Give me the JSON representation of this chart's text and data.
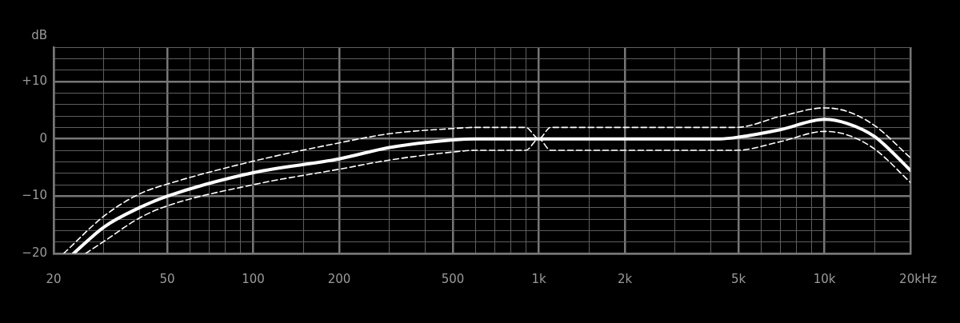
{
  "chart_data": {
    "type": "line",
    "ylabel": "dB",
    "xlabel": "Hz",
    "log": "x",
    "grid": true,
    "xlim": [
      20,
      20000
    ],
    "ylim": [
      -20,
      16
    ],
    "xticks": [
      20,
      {
        "value": 30,
        "label": null
      },
      {
        "value": 40,
        "label": null
      },
      50,
      {
        "value": 60,
        "label": null
      },
      {
        "value": 70,
        "label": null
      },
      {
        "value": 80,
        "label": null
      },
      {
        "value": 90,
        "label": null
      },
      100,
      {
        "value": 150,
        "label": null
      },
      200,
      {
        "value": 300,
        "label": null
      },
      {
        "value": 400,
        "label": null
      },
      500,
      {
        "value": 600,
        "label": null
      },
      {
        "value": 700,
        "label": null
      },
      {
        "value": 800,
        "label": null
      },
      {
        "value": 900,
        "label": null
      },
      {
        "value": 1000,
        "label": "1k"
      },
      {
        "value": 1500,
        "label": null
      },
      {
        "value": 2000,
        "label": "2k"
      },
      {
        "value": 3000,
        "label": null
      },
      {
        "value": 4000,
        "label": null
      },
      {
        "value": 5000,
        "label": "5k"
      },
      {
        "value": 6000,
        "label": null
      },
      {
        "value": 7000,
        "label": null
      },
      {
        "value": 8000,
        "label": null
      },
      {
        "value": 9000,
        "label": null
      },
      {
        "value": 10000,
        "label": "10k"
      },
      {
        "value": 15000,
        "label": null
      },
      {
        "value": 20000,
        "label": "20k"
      }
    ],
    "yticks": [
      {
        "value": -20,
        "label": "−20"
      },
      {
        "value": -18,
        "label": null
      },
      {
        "value": -16,
        "label": null
      },
      {
        "value": -14,
        "label": null
      },
      {
        "value": -12,
        "label": null
      },
      {
        "value": -10,
        "label": "−10"
      },
      {
        "value": -8,
        "label": null
      },
      {
        "value": -6,
        "label": null
      },
      {
        "value": -4,
        "label": null
      },
      {
        "value": -2,
        "label": null
      },
      0,
      {
        "value": 2,
        "label": null
      },
      {
        "value": 4,
        "label": null
      },
      {
        "value": 6,
        "label": null
      },
      {
        "value": 8,
        "label": null
      },
      {
        "value": 10,
        "label": "+10"
      },
      {
        "value": 12,
        "label": null
      },
      {
        "value": 14,
        "label": null
      },
      {
        "value": 16,
        "label": null
      }
    ],
    "series": [
      {
        "color": "#ffffff",
        "line_style": "dashed",
        "x": [
          21.7,
          30,
          40,
          50,
          100,
          200,
          300,
          500,
          600,
          900,
          1000,
          1100,
          4900,
          7000,
          10000,
          12000,
          15000,
          20000
        ],
        "values": [
          -20,
          -13.5,
          -9.6,
          -7.9,
          -3.9,
          -0.7,
          0.9,
          1.8,
          2,
          2,
          0,
          2,
          2,
          3.9,
          5.4,
          4.8,
          2.3,
          -3.3
        ]
      },
      {
        "color": "#ffffff",
        "line_style": "dashed",
        "x": [
          25.9,
          30,
          40,
          50,
          100,
          200,
          300,
          500,
          600,
          900,
          1000,
          1100,
          4900,
          7000,
          10000,
          12000,
          15000,
          20000
        ],
        "values": [
          -20,
          -17.9,
          -13.8,
          -11.7,
          -8,
          -5.3,
          -3.7,
          -2.3,
          -2,
          -2,
          0,
          -2,
          -2,
          -0.5,
          1.3,
          0.7,
          -1.8,
          -7.6
        ]
      },
      {
        "color": "#ffffff",
        "line_style": "solid",
        "x": [
          23.5,
          30,
          40,
          50,
          100,
          200,
          300,
          500,
          600,
          4300,
          5000,
          7000,
          10000,
          12000,
          15000,
          17000,
          20000
        ],
        "values": [
          -20,
          -15.4,
          -12,
          -10,
          -5.9,
          -3.5,
          -1.5,
          -0.2,
          0,
          0,
          0.3,
          1.6,
          3.4,
          2.7,
          0.4,
          -2,
          -5.5
        ]
      }
    ]
  }
}
